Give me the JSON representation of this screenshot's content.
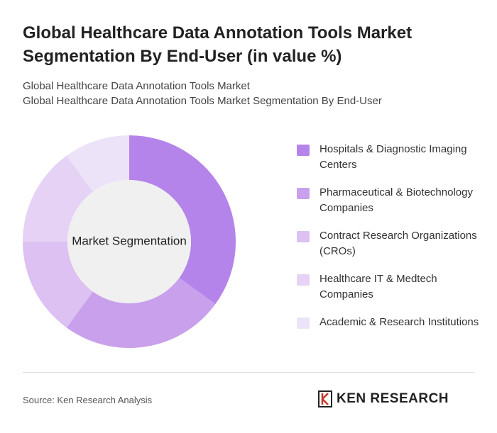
{
  "chart_data": {
    "type": "donut",
    "title": "Global Healthcare Data Annotation Tools Market Segmentation By End-User (in value %)",
    "subtitle_1": "Global Healthcare Data Annotation Tools Market",
    "subtitle_2": "Global Healthcare Data Annotation Tools Market Segmentation By End-User",
    "center_label": "Market Segmentation",
    "categories": [
      "Hospitals & Diagnostic Imaging Centers",
      "Pharmaceutical & Biotechnology Companies",
      "Contract Research Organizations (CROs)",
      "Healthcare IT & Medtech Companies",
      "Academic & Research Institutions"
    ],
    "values": [
      35,
      25,
      15,
      15,
      10
    ],
    "colors": [
      "#b584ea",
      "#c8a0ec",
      "#dcc1f2",
      "#e5d2f5",
      "#ede3f8"
    ],
    "source": "Source: Ken Research Analysis",
    "logo": "KEN RESEARCH"
  }
}
